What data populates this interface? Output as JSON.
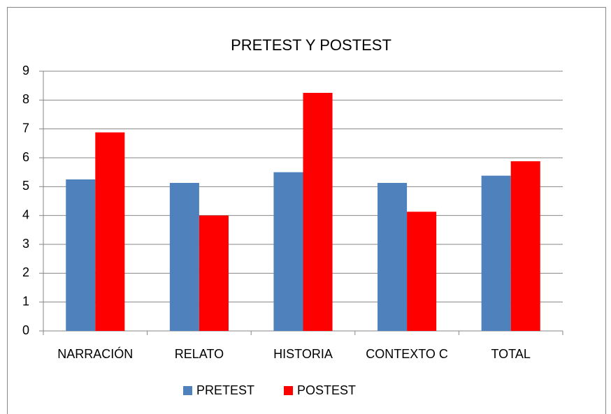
{
  "chart_data": {
    "type": "bar",
    "title": "PRETEST Y POSTEST",
    "categories": [
      "NARRACIÓN",
      "RELATO",
      "HISTORIA",
      "CONTEXTO C",
      "TOTAL"
    ],
    "series": [
      {
        "name": "PRETEST",
        "color": "#4f81bd",
        "values": [
          5.25,
          5.13,
          5.5,
          5.13,
          5.38
        ]
      },
      {
        "name": "POSTEST",
        "color": "#ff0000",
        "values": [
          6.88,
          4,
          8.25,
          4.13,
          5.88
        ]
      }
    ],
    "ylim": [
      0,
      9
    ],
    "yticks": [
      0,
      1,
      2,
      3,
      4,
      5,
      6,
      7,
      8,
      9
    ],
    "grid": true,
    "legend": "bottom"
  }
}
